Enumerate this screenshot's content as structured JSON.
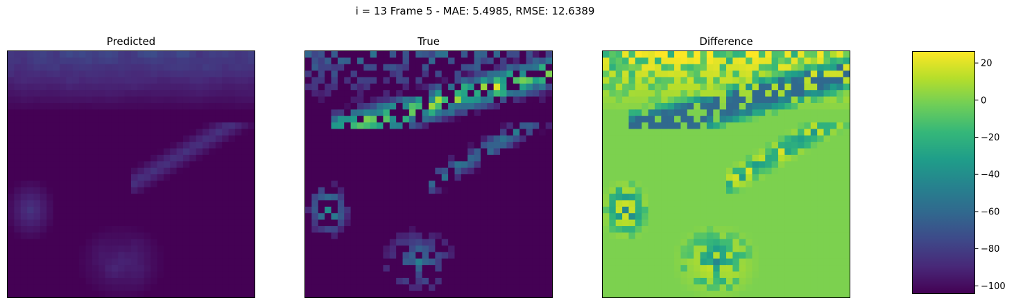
{
  "chart_data": {
    "type": "heatmap",
    "title": "i = 13 Frame 5 - MAE: 5.4985, RMSE: 12.6389",
    "panels": [
      {
        "title": "Predicted",
        "key": "predicted"
      },
      {
        "title": "True",
        "key": "true"
      },
      {
        "title": "Difference",
        "key": "difference"
      }
    ],
    "grid_size": 38,
    "colormap": "viridis",
    "colorbar": {
      "range": [
        -104,
        26
      ],
      "ticks": [
        {
          "value": 20,
          "label": "20"
        },
        {
          "value": 0,
          "label": "0"
        },
        {
          "value": -20,
          "label": "−20"
        },
        {
          "value": -40,
          "label": "−40"
        },
        {
          "value": -60,
          "label": "−60"
        },
        {
          "value": -80,
          "label": "−80"
        },
        {
          "value": -100,
          "label": "−100"
        }
      ]
    },
    "axes": {
      "ticks_visible": false
    },
    "value_ranges": {
      "predicted": [
        -104,
        -72
      ],
      "true": [
        -104,
        20
      ],
      "difference": [
        -60,
        26
      ]
    },
    "colors": {
      "viridis": [
        "#440154",
        "#482878",
        "#3e4989",
        "#31688e",
        "#26828e",
        "#1f9e89",
        "#35b779",
        "#6ece58",
        "#b5de2b",
        "#fde725"
      ]
    }
  }
}
